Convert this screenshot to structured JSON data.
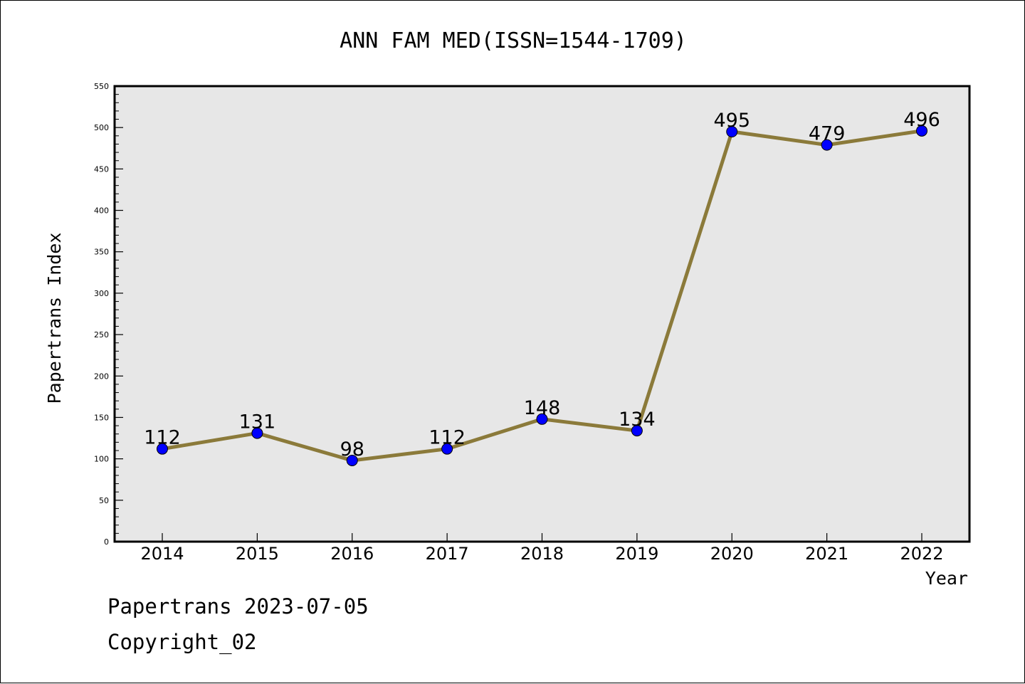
{
  "chart_data": {
    "type": "line",
    "title": "ANN FAM MED(ISSN=1544-1709)",
    "xlabel": "Year",
    "ylabel": "Papertrans Index",
    "categories": [
      "2014",
      "2015",
      "2016",
      "2017",
      "2018",
      "2019",
      "2020",
      "2021",
      "2022"
    ],
    "series": [
      {
        "values": [
          112,
          131,
          98,
          112,
          148,
          134,
          495,
          479,
          496
        ]
      }
    ],
    "ylim": [
      0,
      550
    ],
    "yticks": [
      "0",
      "50",
      "100",
      "150",
      "200",
      "250",
      "300",
      "350",
      "400",
      "450",
      "500",
      "550"
    ],
    "grid": false,
    "legend": "none",
    "colors": {
      "line": "#8B7A3A",
      "marker": "#0000FF",
      "plot_background": "#E7E7E7"
    }
  },
  "footer": {
    "date_line": "Papertrans 2023-07-05",
    "copyright": "Copyright_02"
  }
}
